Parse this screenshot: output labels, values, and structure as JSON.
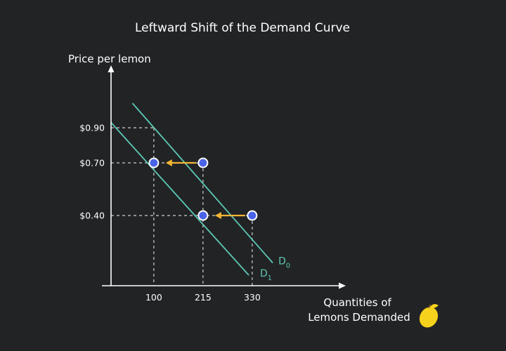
{
  "chart_data": {
    "type": "line",
    "title": "Leftward Shift of the Demand Curve",
    "ylabel": "Price per lemon",
    "xlabel_lines": [
      "Quantities of",
      "Lemons Demanded"
    ],
    "x_ticks": [
      100,
      215,
      330
    ],
    "y_ticks": [
      {
        "value": 0.4,
        "label": "$0.40"
      },
      {
        "value": 0.7,
        "label": "$0.70"
      },
      {
        "value": 0.9,
        "label": "$0.90"
      }
    ],
    "series": [
      {
        "name": "D0",
        "label_main": "D",
        "label_sub": "0",
        "points": [
          {
            "x": 50,
            "y": 1.04
          },
          {
            "x": 378,
            "y": 0.13
          }
        ]
      },
      {
        "name": "D1",
        "label_main": "D",
        "label_sub": "1",
        "points": [
          {
            "x": 0,
            "y": 0.93
          },
          {
            "x": 322,
            "y": 0.06
          }
        ]
      }
    ],
    "points": [
      {
        "x": 100,
        "y": 0.7
      },
      {
        "x": 215,
        "y": 0.7
      },
      {
        "x": 215,
        "y": 0.4
      },
      {
        "x": 330,
        "y": 0.4
      }
    ],
    "guides": [
      {
        "from": {
          "x": 0,
          "y": 0.9
        },
        "to": {
          "x": 100,
          "y": 0.9
        }
      },
      {
        "from": {
          "x": 100,
          "y": 0.9
        },
        "to": {
          "x": 100,
          "y": 0
        }
      },
      {
        "from": {
          "x": 0,
          "y": 0.7
        },
        "to": {
          "x": 215,
          "y": 0.7
        }
      },
      {
        "from": {
          "x": 215,
          "y": 0.7
        },
        "to": {
          "x": 215,
          "y": 0
        }
      },
      {
        "from": {
          "x": 0,
          "y": 0.4
        },
        "to": {
          "x": 330,
          "y": 0.4
        }
      },
      {
        "from": {
          "x": 330,
          "y": 0.4
        },
        "to": {
          "x": 330,
          "y": 0
        }
      }
    ],
    "arrows": [
      {
        "from": {
          "x": 215,
          "y": 0.7
        },
        "to": {
          "x": 100,
          "y": 0.7
        }
      },
      {
        "from": {
          "x": 330,
          "y": 0.4
        },
        "to": {
          "x": 215,
          "y": 0.4
        }
      }
    ],
    "colors": {
      "background": "#222325",
      "curve": "#5cc9b4",
      "curve_label": "#5cc9b4",
      "point_fill": "#4a63e8",
      "point_stroke": "#ffffff",
      "arrow": "#f2b533",
      "guide": "#cfcfcf",
      "axis": "#ffffff",
      "lemon": "#f7d21c",
      "lemon_leaf": "#8a5a2b"
    },
    "icon": "lemon-icon"
  }
}
